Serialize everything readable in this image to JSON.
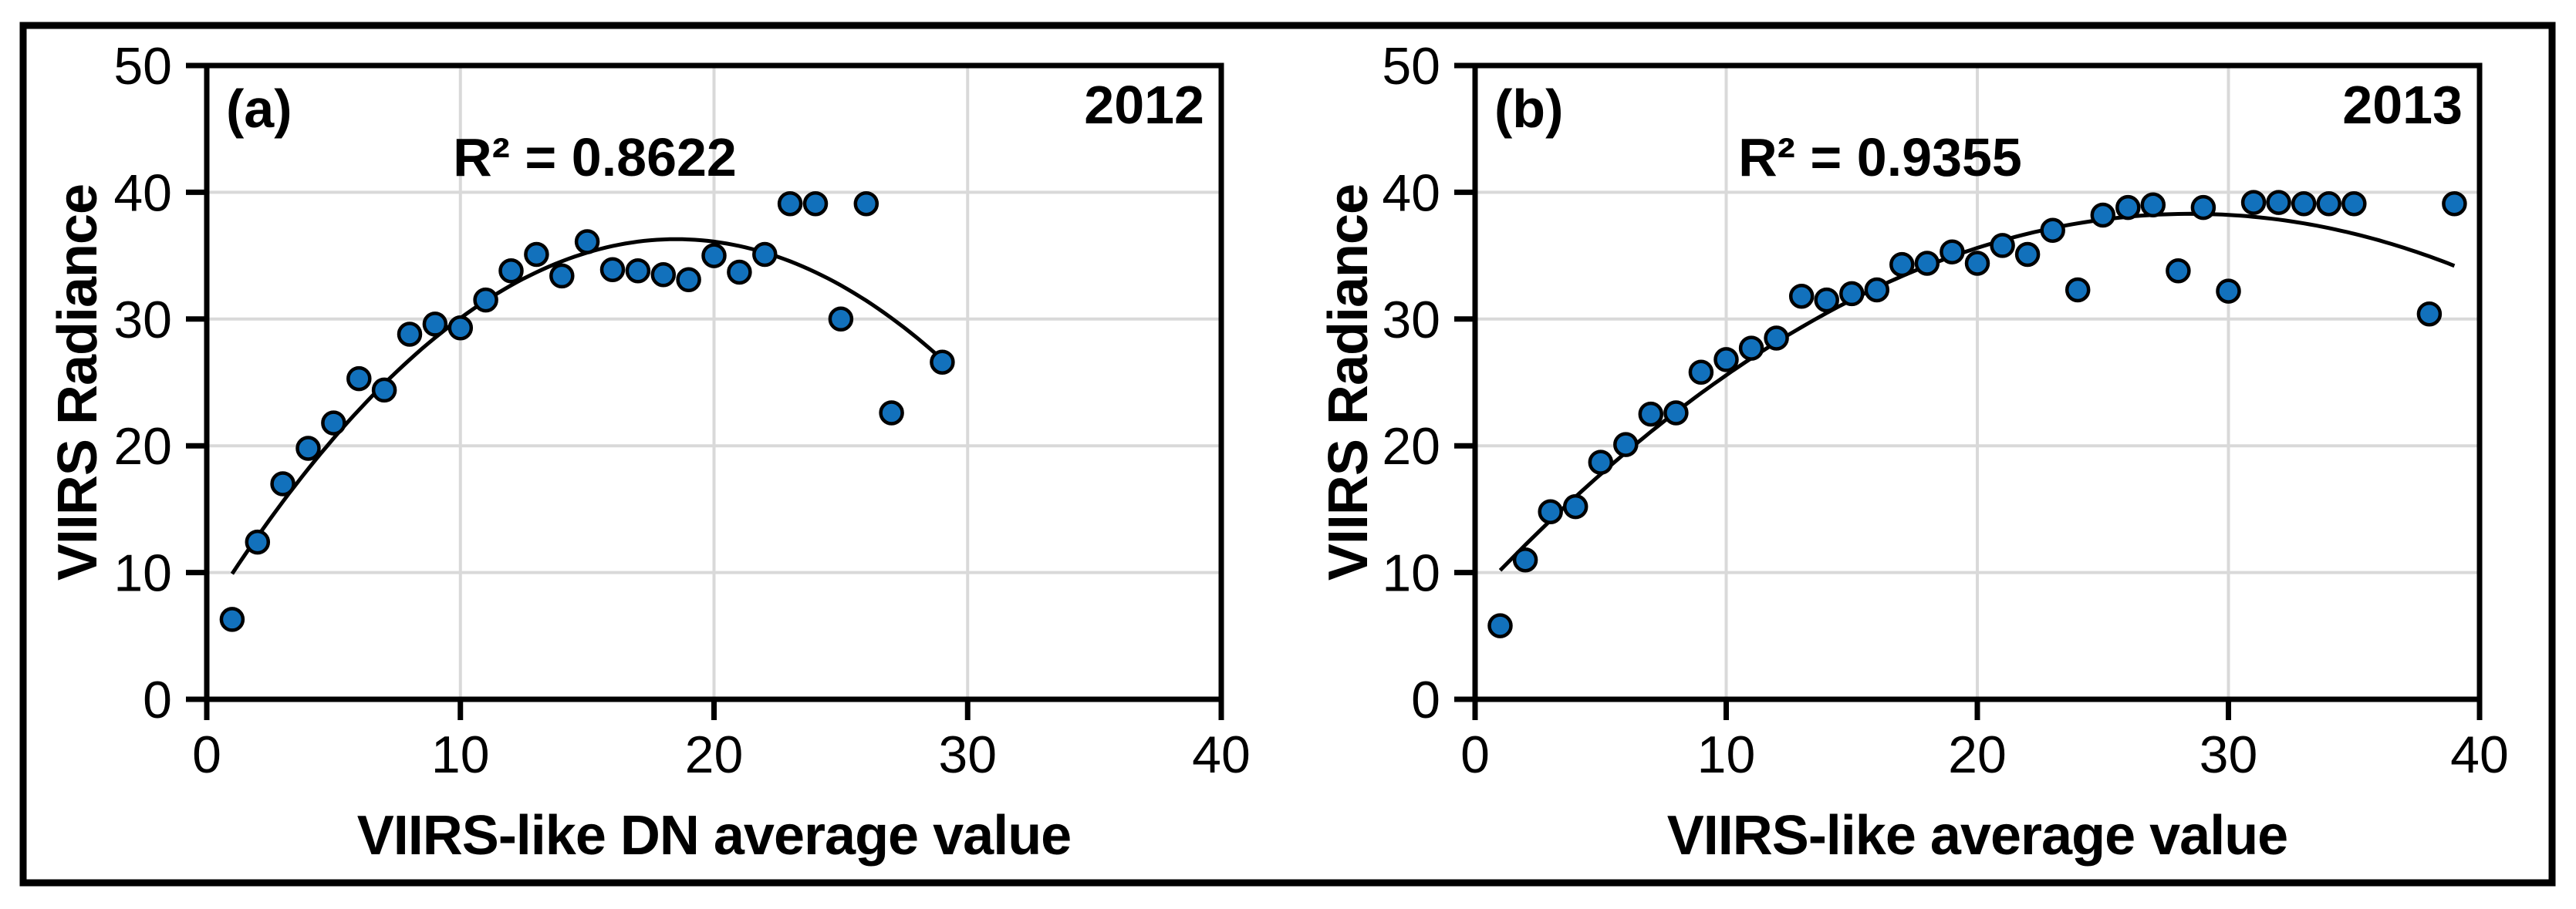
{
  "figure": {
    "background": "#ffffff",
    "border_color": "#000000",
    "grid_color": "#d9d9d9",
    "marker_color": "#1271bc",
    "marker_outline": "#000000",
    "trend_color": "#000000"
  },
  "chart_data": [
    {
      "type": "scatter",
      "panel_label": "(a)",
      "year_label": "2012",
      "r_squared_text": "R² = 0.8622",
      "r_squared": 0.8622,
      "xlabel": "VIIRS-like DN average value",
      "ylabel": "VIIRS Radiance",
      "xlim": [
        0,
        40
      ],
      "ylim": [
        0,
        50
      ],
      "x_ticks": [
        0,
        10,
        20,
        30,
        40
      ],
      "y_ticks": [
        0,
        10,
        20,
        30,
        40,
        50
      ],
      "grid": true,
      "legend": "none",
      "points": [
        [
          1,
          6.3
        ],
        [
          2,
          12.4
        ],
        [
          3,
          17.0
        ],
        [
          4,
          19.8
        ],
        [
          5,
          21.8
        ],
        [
          6,
          25.3
        ],
        [
          7,
          24.4
        ],
        [
          8,
          28.8
        ],
        [
          9,
          29.6
        ],
        [
          10,
          29.3
        ],
        [
          11,
          31.5
        ],
        [
          12,
          33.8
        ],
        [
          13,
          35.1
        ],
        [
          14,
          33.4
        ],
        [
          15,
          36.1
        ],
        [
          16,
          33.9
        ],
        [
          17,
          33.8
        ],
        [
          18,
          33.5
        ],
        [
          19,
          33.1
        ],
        [
          20,
          35.0
        ],
        [
          21,
          33.7
        ],
        [
          22,
          35.1
        ],
        [
          23,
          39.1
        ],
        [
          24,
          39.1
        ],
        [
          25,
          30.0
        ],
        [
          26,
          39.1
        ],
        [
          27,
          22.6
        ],
        [
          29,
          26.6
        ]
      ],
      "trendline": {
        "form": "quadratic",
        "a": -0.0862,
        "vertex_x": 18.5,
        "vertex_y": 36.3,
        "x_start": 1,
        "x_end": 29
      }
    },
    {
      "type": "scatter",
      "panel_label": "(b)",
      "year_label": "2013",
      "r_squared_text": "R² = 0.9355",
      "r_squared": 0.9355,
      "xlabel": "VIIRS-like average value",
      "ylabel": "VIIRS Radiance",
      "xlim": [
        0,
        40
      ],
      "ylim": [
        0,
        50
      ],
      "x_ticks": [
        0,
        10,
        20,
        30,
        40
      ],
      "y_ticks": [
        0,
        10,
        20,
        30,
        40,
        50
      ],
      "grid": true,
      "legend": "none",
      "points": [
        [
          1,
          5.8
        ],
        [
          2,
          11.0
        ],
        [
          3,
          14.8
        ],
        [
          4,
          15.2
        ],
        [
          5,
          18.7
        ],
        [
          6,
          20.1
        ],
        [
          7,
          22.5
        ],
        [
          8,
          22.6
        ],
        [
          9,
          25.8
        ],
        [
          10,
          26.8
        ],
        [
          11,
          27.7
        ],
        [
          12,
          28.5
        ],
        [
          13,
          31.8
        ],
        [
          14,
          31.5
        ],
        [
          15,
          32.0
        ],
        [
          16,
          32.3
        ],
        [
          17,
          34.3
        ],
        [
          18,
          34.4
        ],
        [
          19,
          35.3
        ],
        [
          20,
          34.4
        ],
        [
          21,
          35.8
        ],
        [
          22,
          35.1
        ],
        [
          23,
          37.0
        ],
        [
          24,
          32.3
        ],
        [
          25,
          38.2
        ],
        [
          26,
          38.8
        ],
        [
          27,
          39.0
        ],
        [
          28,
          33.8
        ],
        [
          29,
          38.8
        ],
        [
          30,
          32.2
        ],
        [
          31,
          39.2
        ],
        [
          32,
          39.2
        ],
        [
          33,
          39.1
        ],
        [
          34,
          39.1
        ],
        [
          35,
          39.1
        ],
        [
          38,
          30.4
        ],
        [
          39,
          39.1
        ]
      ],
      "trendline": {
        "form": "quadratic",
        "a": -0.0372,
        "vertex_x": 28.5,
        "vertex_y": 38.3,
        "x_start": 1,
        "x_end": 39
      }
    }
  ]
}
